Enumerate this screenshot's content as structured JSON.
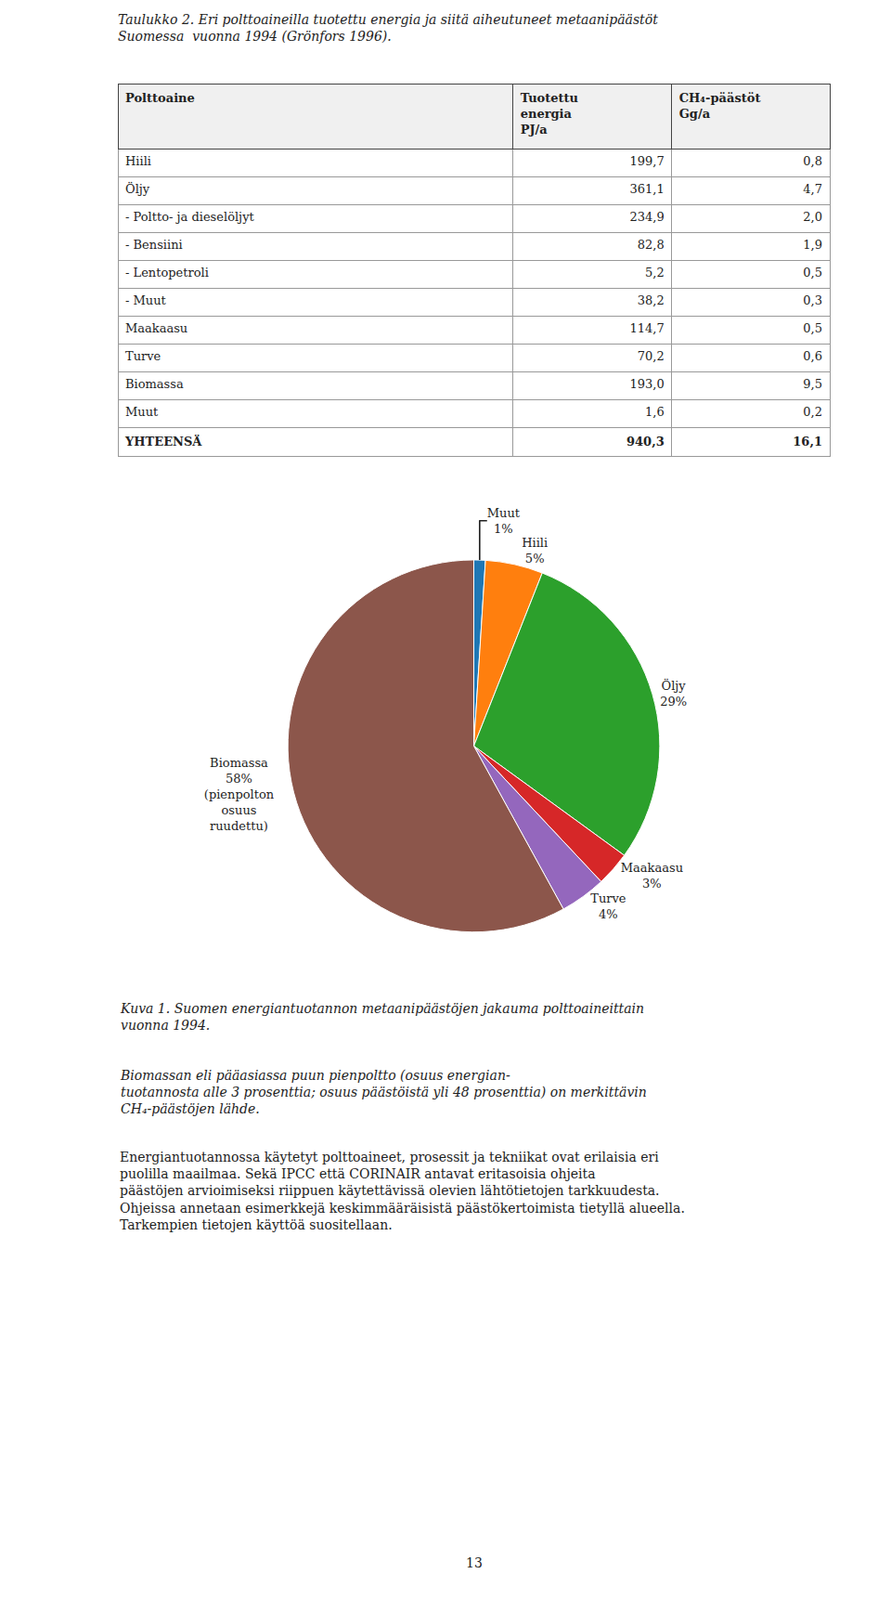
{
  "chart_data": [
    {
      "type": "table",
      "title": "Taulukko 2. Eri polttoaineilla tuotettu energia ja siitä aiheutuneet metaanipäästöt\nSuomessa  vuonna 1994 (Grönfors 1996).",
      "columns": [
        "Polttoaine",
        "Tuotettu\nenergia\nPJ/a",
        "CH₄-päästöt\nGg/a"
      ],
      "rows": [
        [
          "Hiili",
          "199,7",
          "0,8"
        ],
        [
          "Öljy",
          "361,1",
          "4,7"
        ],
        [
          "- Poltto- ja dieselöljyt",
          "234,9",
          "2,0"
        ],
        [
          "- Bensiini",
          "82,8",
          "1,9"
        ],
        [
          "- Lentopetroli",
          "5,2",
          "0,5"
        ],
        [
          "- Muut",
          "38,2",
          "0,3"
        ],
        [
          "Maakaasu",
          "114,7",
          "0,5"
        ],
        [
          "Turve",
          "70,2",
          "0,6"
        ],
        [
          "Biomassa",
          "193,0",
          "9,5"
        ],
        [
          "Muut",
          "1,6",
          "0,2"
        ],
        [
          "YHTEENSÄ",
          "940,3",
          "16,1"
        ]
      ]
    },
    {
      "type": "pie",
      "title": "Kuva 1. Suomen energiantuotannon metaanipäästöjen jakauma polttoaineittain\nvuonna 1994.",
      "categories": [
        "Muut",
        "Hiili",
        "Öljy",
        "Maakaasu",
        "Turve",
        "Biomassa"
      ],
      "values": [
        1,
        5,
        29,
        3,
        4,
        58
      ],
      "value_labels": [
        "1%",
        "5%",
        "29%",
        "3%",
        "4%",
        "58%\n(pienpolton\nosuus\nruudettu)"
      ],
      "data_labels": true,
      "annotations": [
        "Biomassan eli pääasiassa puun pienpoltto (osuus energian-\ntuotannosta alle 3 prosenttia; osuus päästöistä yli 48 prosenttia) on merkittävin\nCH₄-päästöjen lähde.",
        "Energiantuotannossa käytetyt polttoaineet, prosessit ja tekniikat ovat erilaisia eri\npuolilla maailmaa. Sekä IPCC että CORINAIR antavat eritasoisia ohjeita\npäästöjen arvioimiseksi riippuen käytettävissä olevien lähtötietojen tarkkuudesta.\nOhjeissa annetaan esimerkkejä keskimmääräisistä päästökertoimista tietyllä alueella.\nTarkempien tietojen käyttöä suositellaan.",
        "13"
      ]
    }
  ]
}
